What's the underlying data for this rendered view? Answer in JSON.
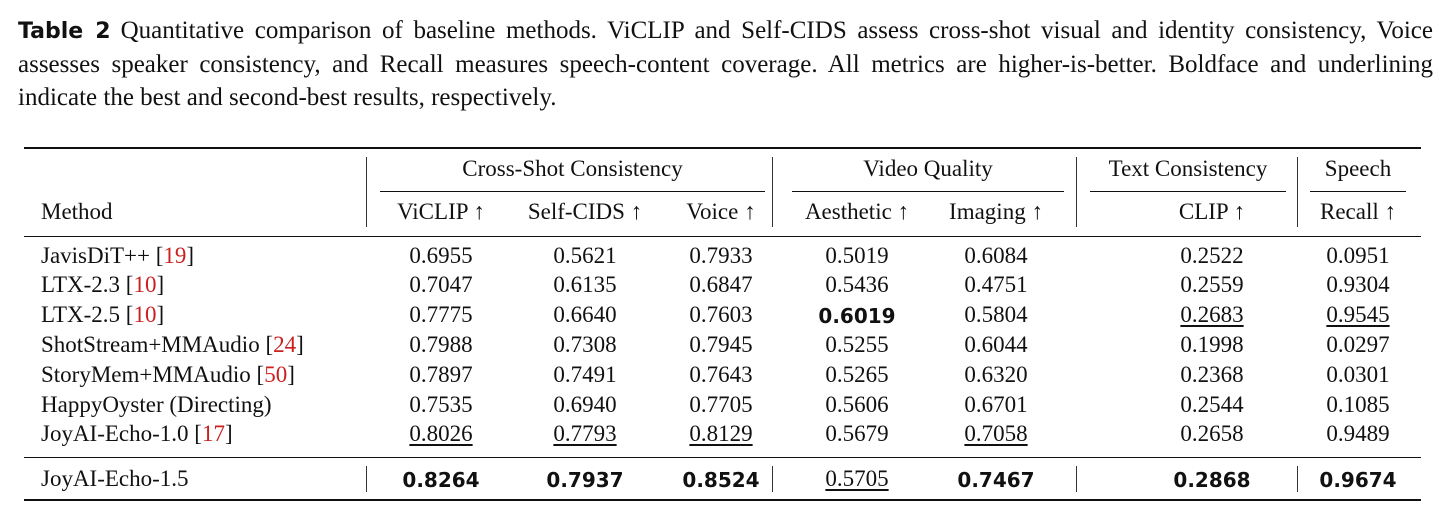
{
  "caption": {
    "label": "Table 2",
    "text": "Quantitative comparison of baseline methods. ViCLIP and Self-CIDS assess cross-shot visual and identity consistency, Voice assesses speaker consistency, and Recall measures speech-content coverage. All metrics are higher-is-better. Boldface and underlining indicate the best and second-best results, respectively."
  },
  "table": {
    "groups": [
      "Cross-Shot Consistency",
      "Video Quality",
      "Text Consistency",
      "Speech"
    ],
    "columns": [
      "Method",
      "ViCLIP ↑",
      "Self-CIDS ↑",
      "Voice ↑",
      "Aesthetic ↑",
      "Imaging ↑",
      "CLIP ↑",
      "Recall ↑"
    ],
    "rows": [
      {
        "method": "JavisDiT++",
        "ref": "19",
        "values": [
          "0.6955",
          "0.5621",
          "0.7933",
          "0.5019",
          "0.6084",
          "0.2522",
          "0.0951"
        ],
        "marks": [
          "",
          "",
          "",
          "",
          "",
          "",
          ""
        ]
      },
      {
        "method": "LTX-2.3",
        "ref": "10",
        "values": [
          "0.7047",
          "0.6135",
          "0.6847",
          "0.5436",
          "0.4751",
          "0.2559",
          "0.9304"
        ],
        "marks": [
          "",
          "",
          "",
          "",
          "",
          "",
          ""
        ]
      },
      {
        "method": "LTX-2.5",
        "ref": "10",
        "values": [
          "0.7775",
          "0.6640",
          "0.7603",
          "0.6019",
          "0.5804",
          "0.2683",
          "0.9545"
        ],
        "marks": [
          "",
          "",
          "",
          "best",
          "",
          "second",
          "second"
        ]
      },
      {
        "method": "ShotStream+MMAudio",
        "ref": "24",
        "values": [
          "0.7988",
          "0.7308",
          "0.7945",
          "0.5255",
          "0.6044",
          "0.1998",
          "0.0297"
        ],
        "marks": [
          "",
          "",
          "",
          "",
          "",
          "",
          ""
        ]
      },
      {
        "method": "StoryMem+MMAudio",
        "ref": "50",
        "values": [
          "0.7897",
          "0.7491",
          "0.7643",
          "0.5265",
          "0.6320",
          "0.2368",
          "0.0301"
        ],
        "marks": [
          "",
          "",
          "",
          "",
          "",
          "",
          ""
        ]
      },
      {
        "method": "HappyOyster (Directing)",
        "ref": "",
        "values": [
          "0.7535",
          "0.6940",
          "0.7705",
          "0.5606",
          "0.6701",
          "0.2544",
          "0.1085"
        ],
        "marks": [
          "",
          "",
          "",
          "",
          "",
          "",
          ""
        ]
      },
      {
        "method": "JoyAI-Echo-1.0",
        "ref": "17",
        "values": [
          "0.8026",
          "0.7793",
          "0.8129",
          "0.5679",
          "0.7058",
          "0.2658",
          "0.9489"
        ],
        "marks": [
          "second",
          "second",
          "second",
          "",
          "second",
          "",
          ""
        ]
      },
      {
        "method": "JoyAI-Echo-1.5",
        "ref": "",
        "values": [
          "0.8264",
          "0.7937",
          "0.8524",
          "0.5705",
          "0.7467",
          "0.2868",
          "0.9674"
        ],
        "marks": [
          "best",
          "best",
          "best",
          "second",
          "best",
          "best",
          "best"
        ]
      }
    ]
  }
}
